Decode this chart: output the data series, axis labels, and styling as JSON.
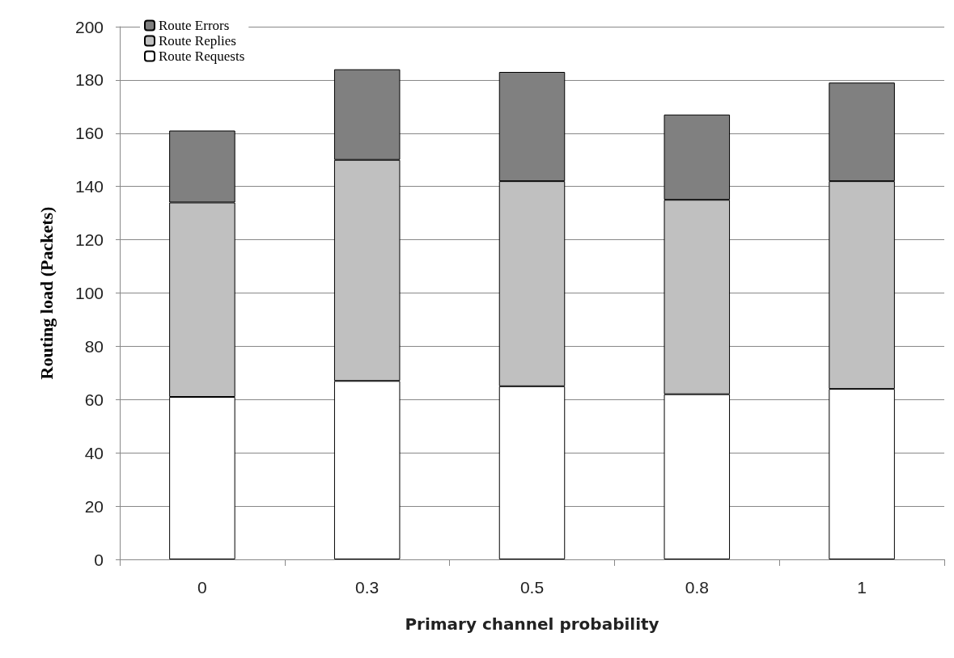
{
  "chart_data": {
    "type": "bar",
    "stacked": true,
    "xlabel": "Primary channel probability",
    "ylabel": "Routing load (Packets)",
    "categories": [
      "0",
      "0.3",
      "0.5",
      "0.8",
      "1"
    ],
    "series": [
      {
        "name": "Route Requests",
        "color": "#ffffff",
        "values": [
          61,
          67,
          65,
          62,
          64
        ]
      },
      {
        "name": "Route Replies",
        "color": "#c0c0c0",
        "values": [
          73,
          83,
          77,
          73,
          78
        ]
      },
      {
        "name": "Route Errors",
        "color": "#808080",
        "values": [
          27,
          34,
          41,
          32,
          37
        ]
      }
    ],
    "ylim": [
      0,
      200
    ],
    "yticks": [
      0,
      20,
      40,
      60,
      80,
      100,
      120,
      140,
      160,
      180,
      200
    ],
    "grid": "y",
    "legend": "top left"
  }
}
